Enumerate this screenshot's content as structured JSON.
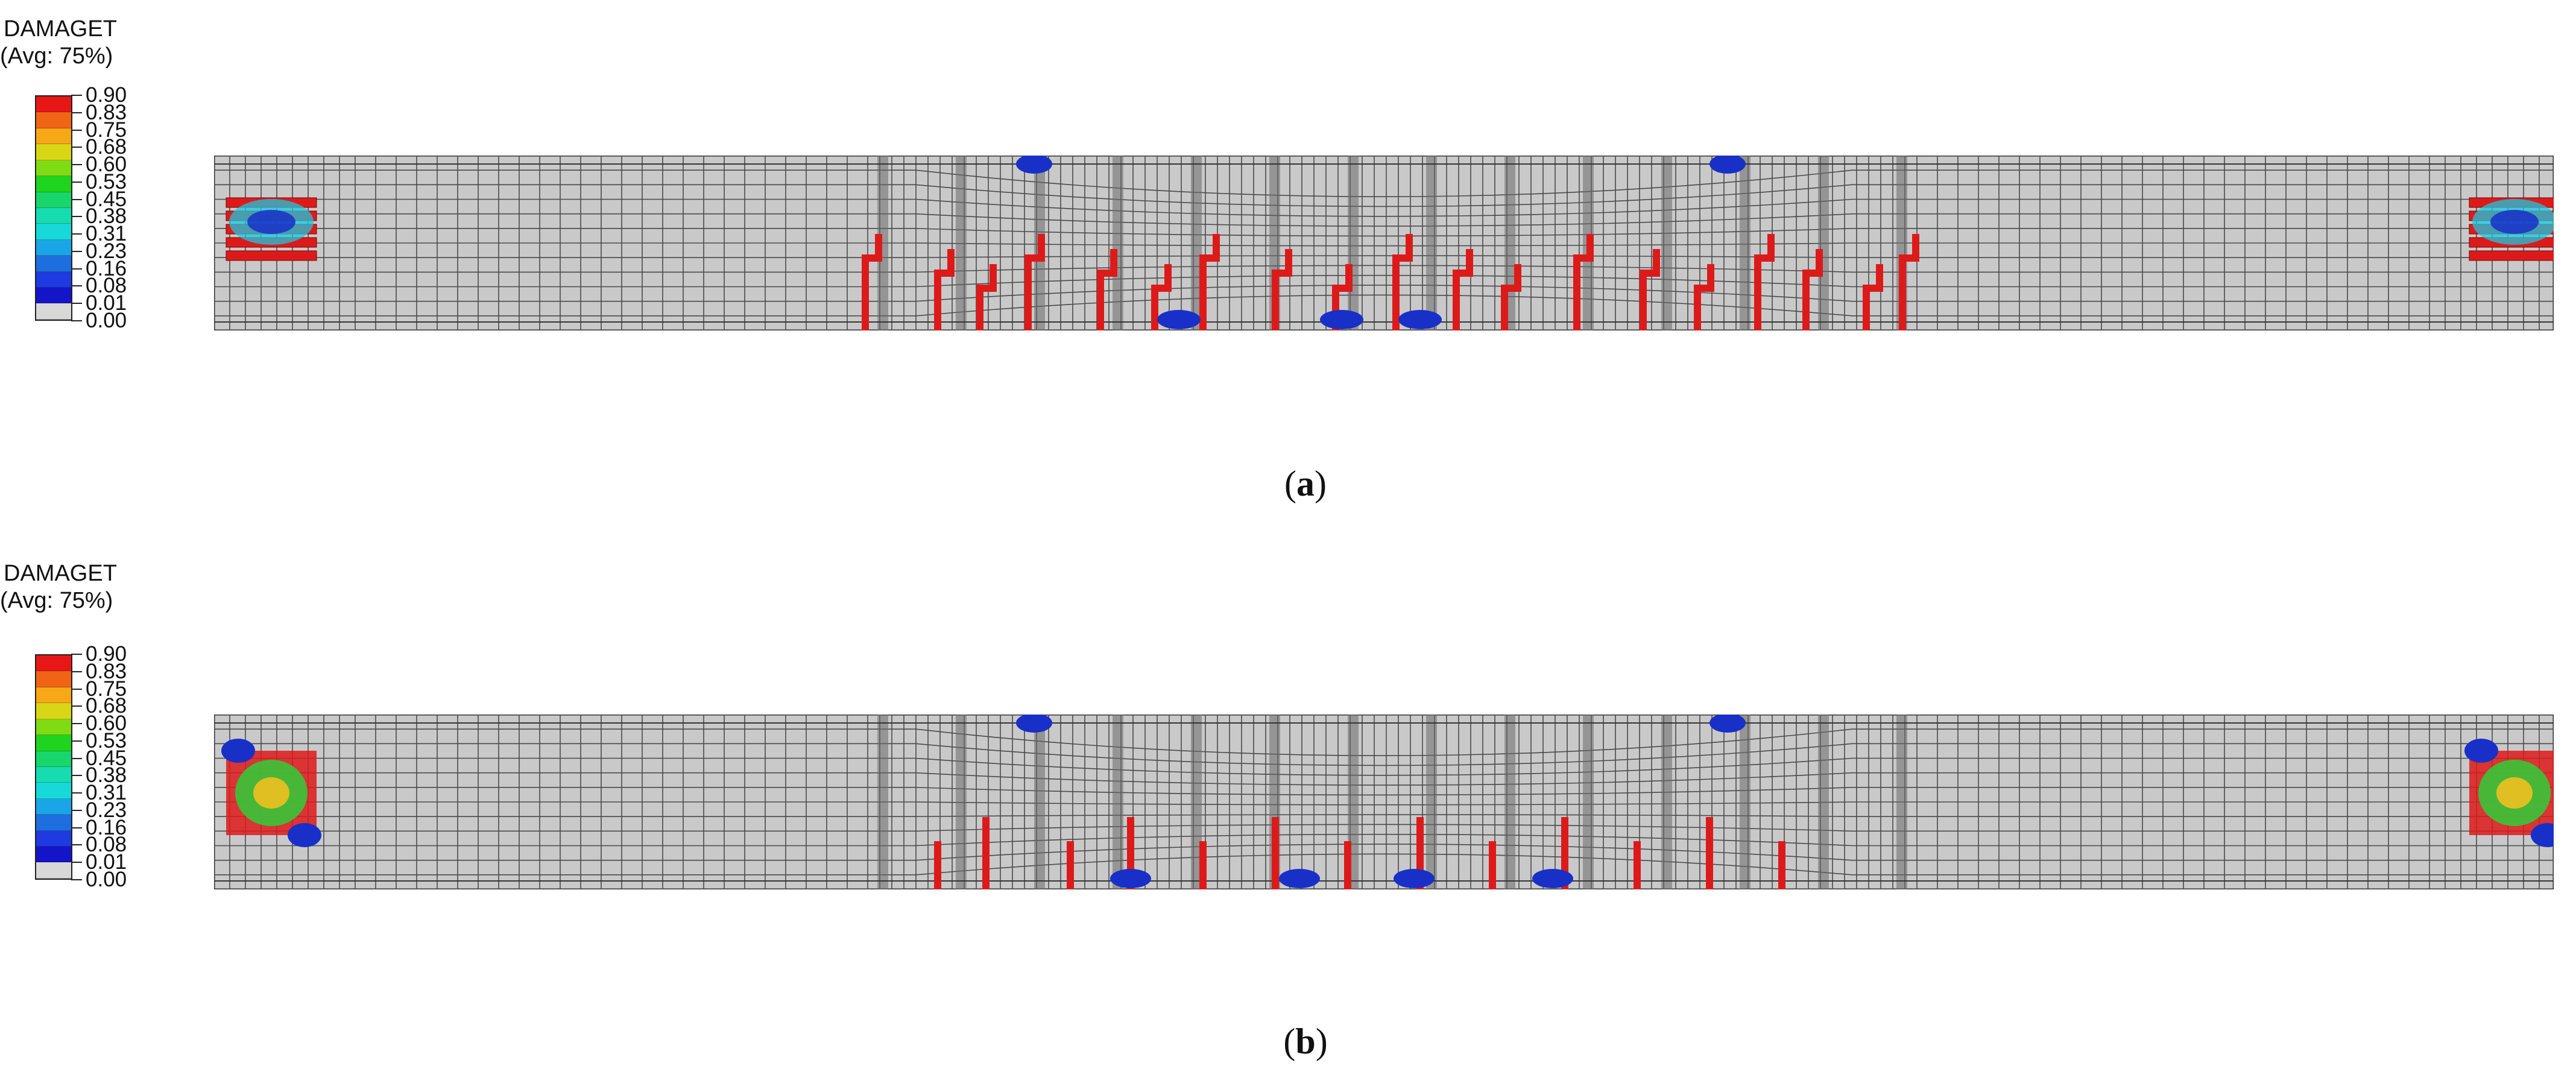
{
  "panels": [
    {
      "id": "a",
      "legend": {
        "title": "DAMAGET",
        "subtitle": "(Avg: 75%)",
        "ticks": [
          "0.90",
          "0.83",
          "0.75",
          "0.68",
          "0.60",
          "0.53",
          "0.45",
          "0.38",
          "0.31",
          "0.23",
          "0.16",
          "0.08",
          "0.01",
          "0.00"
        ],
        "colors": [
          "#e81717",
          "#f06416",
          "#f7a817",
          "#d9d715",
          "#7fdc14",
          "#1ed41e",
          "#18d66b",
          "#16dcb0",
          "#18d9d9",
          "#1aa6e6",
          "#1e6ee0",
          "#1e3ae0",
          "#1414c8",
          "#d8d8d8"
        ]
      },
      "caption_prefix": "(",
      "caption_letter": "a",
      "caption_suffix": ")"
    },
    {
      "id": "b",
      "legend": {
        "title": "DAMAGET",
        "subtitle": "(Avg: 75%)",
        "ticks": [
          "0.90",
          "0.83",
          "0.75",
          "0.68",
          "0.60",
          "0.53",
          "0.45",
          "0.38",
          "0.31",
          "0.23",
          "0.16",
          "0.08",
          "0.01",
          "0.00"
        ],
        "colors": [
          "#e81717",
          "#f06416",
          "#f7a817",
          "#d9d715",
          "#7fdc14",
          "#1ed41e",
          "#18d66b",
          "#16dcb0",
          "#18d9d9",
          "#1aa6e6",
          "#1e6ee0",
          "#1e3ae0",
          "#1414c8",
          "#d8d8d8"
        ]
      },
      "caption_prefix": "(",
      "caption_letter": "b",
      "caption_suffix": ")"
    }
  ],
  "colors": {
    "mesh_fill": "#c9c9c9",
    "mesh_line": "#4a4a4a",
    "crack_red": "#dd1a1a",
    "damage_blue": "#1830c8",
    "damage_cyan": "#18c8e0"
  }
}
